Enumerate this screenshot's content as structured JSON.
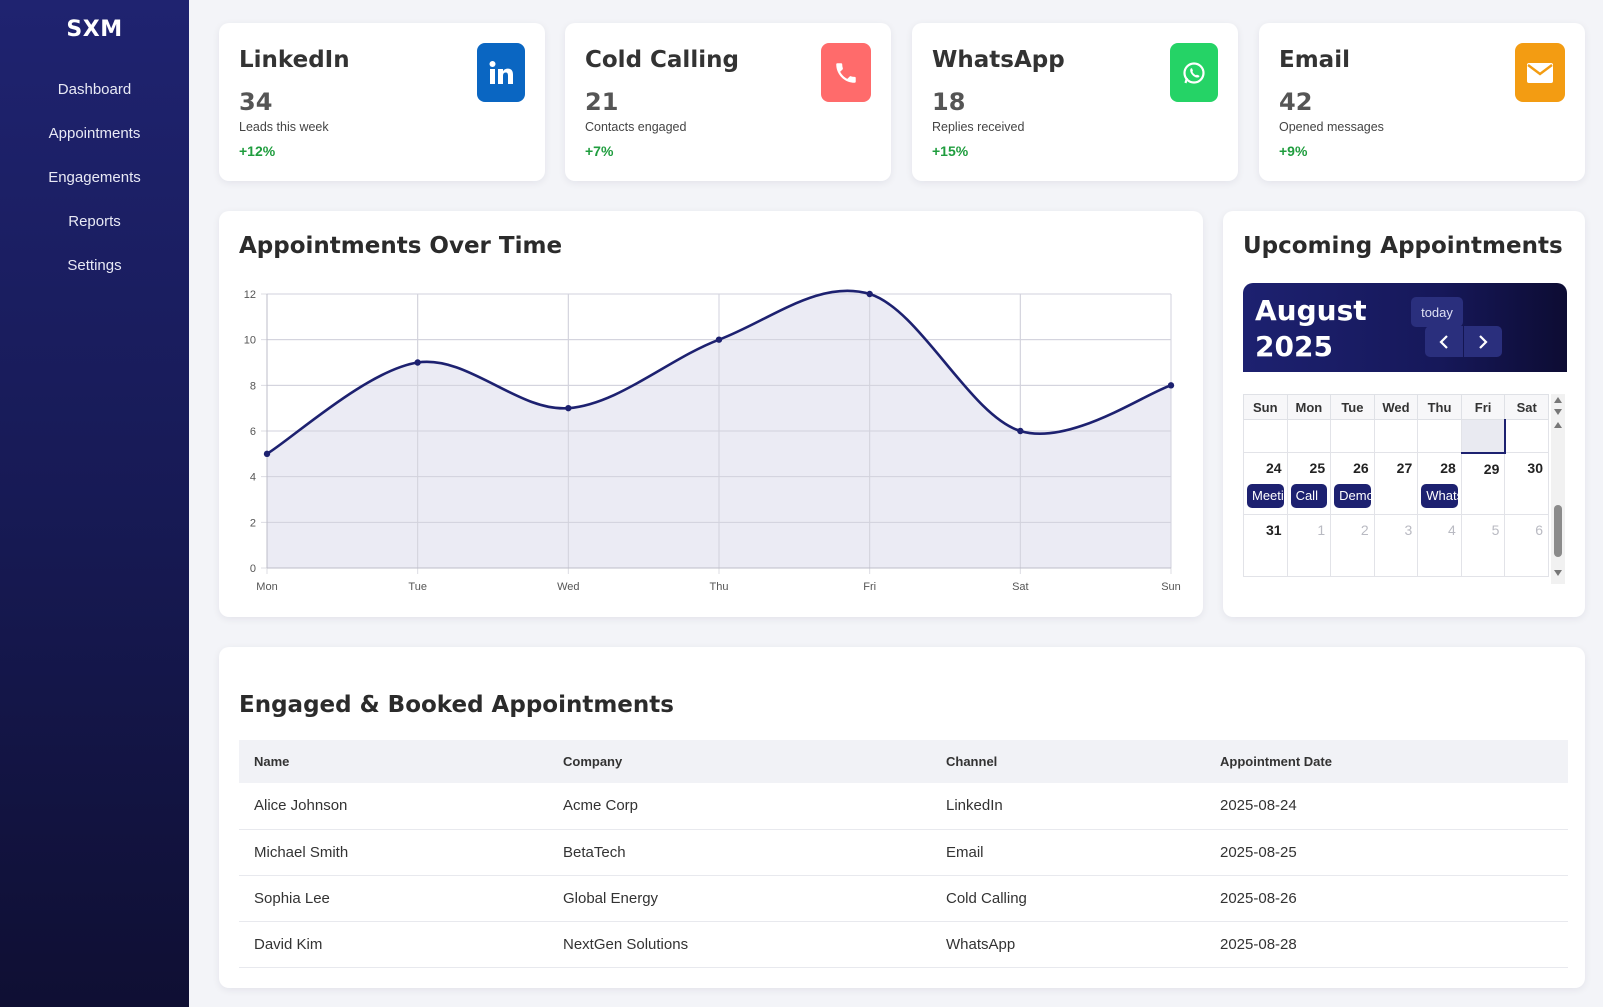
{
  "app": {
    "brand": "SXM"
  },
  "sidebar": {
    "items": [
      {
        "label": "Dashboard"
      },
      {
        "label": "Appointments"
      },
      {
        "label": "Engagements"
      },
      {
        "label": "Reports"
      },
      {
        "label": "Settings"
      }
    ]
  },
  "stats": [
    {
      "title": "LinkedIn",
      "value": "34",
      "sub": "Leads this week",
      "delta": "+12%",
      "icon": "linkedin-icon",
      "color": "#0a66c2"
    },
    {
      "title": "Cold Calling",
      "value": "21",
      "sub": "Contacts engaged",
      "delta": "+7%",
      "icon": "phone-icon",
      "color": "#ff6b6b"
    },
    {
      "title": "WhatsApp",
      "value": "18",
      "sub": "Replies received",
      "delta": "+15%",
      "icon": "whatsapp-icon",
      "color": "#25d366"
    },
    {
      "title": "Email",
      "value": "42",
      "sub": "Opened messages",
      "delta": "+9%",
      "icon": "envelope-icon",
      "color": "#f39c12"
    }
  ],
  "chart_panel": {
    "title": "Appointments Over Time"
  },
  "chart_data": {
    "type": "line",
    "categories": [
      "Mon",
      "Tue",
      "Wed",
      "Thu",
      "Fri",
      "Sat",
      "Sun"
    ],
    "values": [
      5,
      9,
      7,
      10,
      12,
      6,
      8
    ],
    "yticks": [
      0,
      2,
      4,
      6,
      8,
      10,
      12
    ],
    "ylim": [
      0,
      12
    ],
    "title": "",
    "xlabel": "",
    "ylabel": "",
    "grid": true,
    "line_color": "#1d2170",
    "fill_color": "#e8e8f2"
  },
  "calendar": {
    "title": "Upcoming Appointments",
    "month": "August",
    "year": "2025",
    "today_label": "today",
    "weekdays": [
      "Sun",
      "Mon",
      "Tue",
      "Wed",
      "Thu",
      "Fri",
      "Sat"
    ],
    "week1": [
      {
        "day": "24",
        "event": "Meeting"
      },
      {
        "day": "25",
        "event": "Call"
      },
      {
        "day": "26",
        "event": "Demo"
      },
      {
        "day": "27",
        "event": ""
      },
      {
        "day": "28",
        "event": "WhatsApp"
      },
      {
        "day": "29",
        "event": ""
      },
      {
        "day": "30",
        "event": ""
      }
    ],
    "week2": [
      "31",
      "1",
      "2",
      "3",
      "4",
      "5",
      "6"
    ]
  },
  "table": {
    "title": "Engaged & Booked Appointments",
    "headers": [
      "Name",
      "Company",
      "Channel",
      "Appointment Date"
    ],
    "rows": [
      [
        "Alice Johnson",
        "Acme Corp",
        "LinkedIn",
        "2025-08-24"
      ],
      [
        "Michael Smith",
        "BetaTech",
        "Email",
        "2025-08-25"
      ],
      [
        "Sophia Lee",
        "Global Energy",
        "Cold Calling",
        "2025-08-26"
      ],
      [
        "David Kim",
        "NextGen Solutions",
        "WhatsApp",
        "2025-08-28"
      ]
    ]
  }
}
